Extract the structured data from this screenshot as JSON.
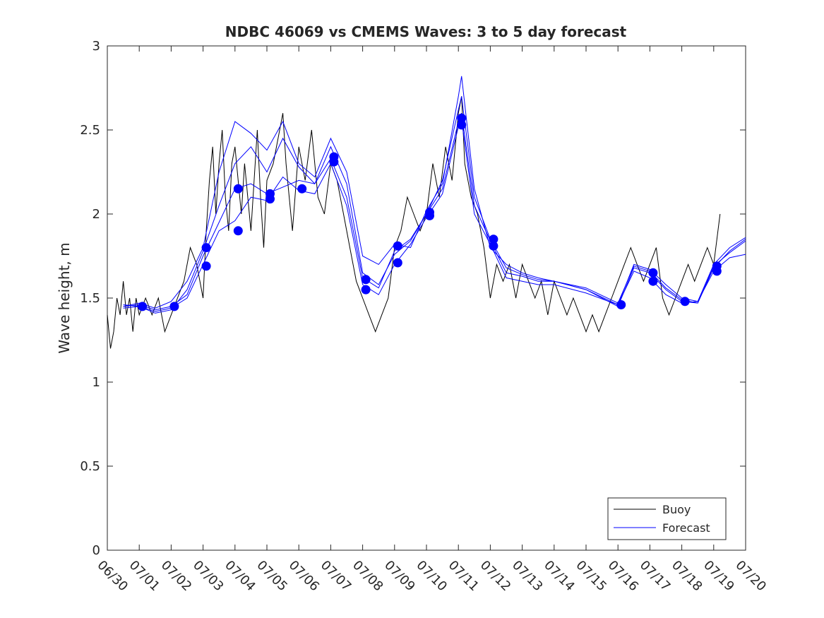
{
  "chart_data": {
    "type": "line",
    "title": "NDBC 46069 vs CMEMS Waves: 3 to 5 day forecast",
    "xlabel": "",
    "ylabel": "Wave height, m",
    "xlim": [
      "06/30",
      "07/20"
    ],
    "ylim": [
      0,
      3
    ],
    "x_ticks": [
      "06/30",
      "07/01",
      "07/02",
      "07/03",
      "07/04",
      "07/05",
      "07/06",
      "07/07",
      "07/08",
      "07/09",
      "07/10",
      "07/11",
      "07/12",
      "07/13",
      "07/14",
      "07/15",
      "07/16",
      "07/17",
      "07/18",
      "07/19",
      "07/20"
    ],
    "y_ticks": [
      "0",
      "0.5",
      "1",
      "1.5",
      "2",
      "2.5",
      "3"
    ],
    "legend": {
      "placement": "bottom-right",
      "entries": [
        "Buoy",
        "Forecast"
      ]
    },
    "colors": {
      "buoy": "#000000",
      "forecast": "#0000ff",
      "axis": "#262626"
    },
    "buoy": {
      "name": "Buoy",
      "x_days": [
        0,
        0.1,
        0.2,
        0.3,
        0.4,
        0.5,
        0.6,
        0.7,
        0.8,
        0.9,
        1.0,
        1.2,
        1.4,
        1.6,
        1.8,
        2.0,
        2.2,
        2.4,
        2.6,
        2.8,
        3.0,
        3.1,
        3.2,
        3.3,
        3.4,
        3.5,
        3.6,
        3.7,
        3.8,
        3.9,
        4.0,
        4.1,
        4.2,
        4.3,
        4.4,
        4.5,
        4.6,
        4.7,
        4.8,
        4.9,
        5.0,
        5.2,
        5.4,
        5.5,
        5.6,
        5.7,
        5.8,
        6.0,
        6.2,
        6.4,
        6.6,
        6.8,
        7.0,
        7.2,
        7.4,
        7.6,
        7.8,
        8.0,
        8.2,
        8.4,
        8.6,
        8.8,
        9.0,
        9.2,
        9.4,
        9.6,
        9.8,
        10.0,
        10.2,
        10.4,
        10.6,
        10.8,
        11.0,
        11.1,
        11.2,
        11.4,
        11.6,
        11.8,
        12.0,
        12.2,
        12.4,
        12.6,
        12.8,
        13.0,
        13.2,
        13.4,
        13.6,
        13.8,
        14.0,
        14.2,
        14.4,
        14.6,
        14.8,
        15.0,
        15.2,
        15.4,
        15.6,
        15.8,
        16.0,
        16.2,
        16.4,
        16.6,
        16.8,
        17.0,
        17.2,
        17.4,
        17.6,
        17.8,
        18.0,
        18.2,
        18.4,
        18.6,
        18.8,
        19.0,
        19.2
      ],
      "y": [
        1.4,
        1.2,
        1.3,
        1.5,
        1.4,
        1.6,
        1.4,
        1.5,
        1.3,
        1.5,
        1.4,
        1.5,
        1.4,
        1.5,
        1.3,
        1.4,
        1.5,
        1.6,
        1.8,
        1.7,
        1.5,
        1.9,
        2.2,
        2.4,
        2.0,
        2.3,
        2.5,
        2.1,
        1.9,
        2.3,
        2.4,
        2.2,
        2.0,
        2.3,
        2.1,
        1.9,
        2.2,
        2.5,
        2.1,
        1.8,
        2.2,
        2.3,
        2.5,
        2.6,
        2.3,
        2.1,
        1.9,
        2.4,
        2.2,
        2.5,
        2.1,
        2.0,
        2.3,
        2.2,
        2.0,
        1.8,
        1.6,
        1.5,
        1.4,
        1.3,
        1.4,
        1.5,
        1.8,
        1.9,
        2.1,
        2.0,
        1.9,
        2.0,
        2.3,
        2.1,
        2.4,
        2.2,
        2.6,
        2.7,
        2.3,
        2.1,
        2.0,
        1.8,
        1.5,
        1.7,
        1.6,
        1.7,
        1.5,
        1.7,
        1.6,
        1.5,
        1.6,
        1.4,
        1.6,
        1.5,
        1.4,
        1.5,
        1.4,
        1.3,
        1.4,
        1.3,
        1.4,
        1.5,
        1.6,
        1.7,
        1.8,
        1.7,
        1.6,
        1.7,
        1.8,
        1.5,
        1.4,
        1.5,
        1.6,
        1.7,
        1.6,
        1.7,
        1.8,
        1.7,
        2.0
      ]
    },
    "forecast": {
      "name": "Forecast",
      "series": [
        {
          "x_days": [
            0.5,
            1.0,
            1.5,
            2.0,
            2.5,
            3.0,
            3.5,
            4.0,
            4.5,
            5.0,
            5.5,
            6.0,
            6.5,
            7.0,
            7.5,
            8.0,
            8.5,
            9.0,
            9.5,
            10.0,
            10.5,
            11.0,
            11.1,
            11.5,
            12.0,
            12.5,
            13.0,
            13.5,
            14.0,
            15.0,
            16.0,
            16.5,
            17.0,
            17.5,
            18.0,
            18.5,
            19.0,
            19.5,
            20.0
          ],
          "y": [
            1.45,
            1.46,
            1.43,
            1.45,
            1.52,
            1.75,
            1.95,
            2.15,
            2.18,
            2.12,
            2.16,
            2.2,
            2.18,
            2.33,
            2.1,
            1.62,
            1.56,
            1.78,
            1.85,
            2.0,
            2.15,
            2.55,
            2.6,
            2.05,
            1.84,
            1.65,
            1.63,
            1.6,
            1.6,
            1.55,
            1.45,
            1.68,
            1.65,
            1.55,
            1.48,
            1.47,
            1.68,
            1.78,
            1.85
          ]
        },
        {
          "x_days": [
            0.5,
            1.0,
            1.5,
            2.0,
            2.5,
            3.0,
            3.5,
            4.0,
            4.5,
            5.0,
            5.5,
            6.0,
            6.5,
            7.0,
            7.5,
            8.0,
            8.5,
            9.0,
            9.5,
            10.0,
            10.5,
            11.0,
            11.1,
            11.5,
            12.0,
            12.5,
            13.0,
            13.5,
            14.0,
            15.0,
            16.0,
            16.5,
            17.0,
            17.5,
            18.0,
            18.5,
            19.0,
            19.5,
            20.0
          ],
          "y": [
            1.45,
            1.47,
            1.44,
            1.48,
            1.6,
            1.8,
            2.25,
            2.55,
            2.48,
            2.38,
            2.55,
            2.3,
            2.22,
            2.45,
            2.25,
            1.75,
            1.7,
            1.82,
            1.8,
            2.02,
            2.18,
            2.7,
            2.82,
            2.15,
            1.8,
            1.7,
            1.65,
            1.62,
            1.6,
            1.55,
            1.46,
            1.7,
            1.67,
            1.58,
            1.5,
            1.48,
            1.7,
            1.8,
            1.86
          ]
        },
        {
          "x_days": [
            0.5,
            1.0,
            1.5,
            2.0,
            2.5,
            3.0,
            3.5,
            4.0,
            4.5,
            5.0,
            5.5,
            6.0,
            6.5,
            7.0,
            7.5,
            8.0,
            8.5,
            9.0,
            9.5,
            10.0,
            10.5,
            11.0,
            11.1,
            11.5,
            12.0,
            12.5,
            13.0,
            13.5,
            14.0,
            15.0,
            16.0,
            16.5,
            17.0,
            17.5,
            18.0,
            18.5,
            19.0,
            19.5,
            20.0
          ],
          "y": [
            1.46,
            1.45,
            1.42,
            1.44,
            1.5,
            1.7,
            1.9,
            1.96,
            2.1,
            2.08,
            2.22,
            2.14,
            2.12,
            2.3,
            2.05,
            1.58,
            1.52,
            1.7,
            1.82,
            1.98,
            2.12,
            2.52,
            2.56,
            2.0,
            1.82,
            1.62,
            1.6,
            1.58,
            1.58,
            1.53,
            1.46,
            1.66,
            1.62,
            1.52,
            1.47,
            1.48,
            1.66,
            1.74,
            1.76
          ]
        },
        {
          "x_days": [
            0.5,
            1.0,
            1.5,
            2.0,
            2.5,
            3.0,
            3.5,
            4.0,
            4.5,
            5.0,
            5.5,
            6.0,
            6.5,
            7.0,
            7.5,
            8.0,
            8.5,
            9.0,
            9.5,
            10.0,
            10.5,
            11.0,
            11.1,
            11.5,
            12.0,
            12.5,
            13.0,
            13.5,
            14.0,
            15.0,
            16.0,
            16.5,
            17.0,
            17.5,
            18.0,
            18.5,
            19.0,
            19.5,
            20.0
          ],
          "y": [
            1.44,
            1.45,
            1.41,
            1.43,
            1.55,
            1.78,
            2.05,
            2.3,
            2.4,
            2.25,
            2.45,
            2.28,
            2.18,
            2.4,
            2.18,
            1.65,
            1.58,
            1.76,
            1.84,
            2.0,
            2.2,
            2.62,
            2.7,
            2.1,
            1.85,
            1.68,
            1.64,
            1.61,
            1.6,
            1.56,
            1.47,
            1.69,
            1.66,
            1.56,
            1.49,
            1.47,
            1.69,
            1.77,
            1.84
          ]
        }
      ],
      "markers_x_days": [
        1.1,
        2.1,
        3.1,
        3.1,
        4.1,
        4.1,
        5.1,
        5.1,
        6.1,
        7.1,
        7.1,
        8.1,
        8.1,
        9.1,
        9.1,
        10.1,
        10.1,
        11.1,
        11.1,
        12.1,
        12.1,
        16.1,
        17.1,
        17.1,
        18.1,
        19.1,
        19.1
      ],
      "markers_y": [
        1.45,
        1.45,
        1.8,
        1.69,
        2.15,
        1.9,
        2.12,
        2.09,
        2.15,
        2.34,
        2.31,
        1.61,
        1.55,
        1.81,
        1.71,
        2.01,
        1.99,
        2.57,
        2.53,
        1.85,
        1.81,
        1.46,
        1.65,
        1.6,
        1.48,
        1.69,
        1.66
      ]
    }
  }
}
